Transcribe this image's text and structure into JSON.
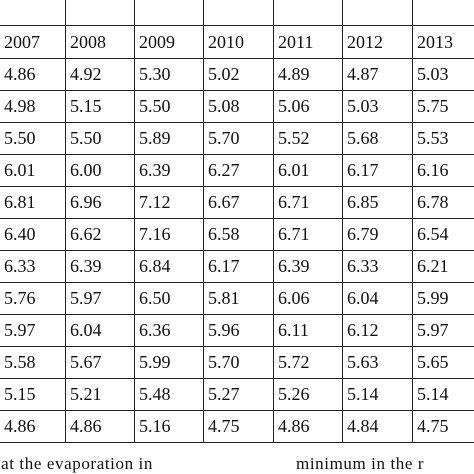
{
  "table": {
    "headers": [
      "2007",
      "2008",
      "2009",
      "2010",
      "2011",
      "2012",
      "2013"
    ],
    "rows": [
      [
        "4.86",
        "4.92",
        "5.30",
        "5.02",
        "4.89",
        "4.87",
        "5.03"
      ],
      [
        "4.98",
        "5.15",
        "5.50",
        "5.08",
        "5.06",
        "5.03",
        "5.75"
      ],
      [
        "5.50",
        "5.50",
        "5.89",
        "5.70",
        "5.52",
        "5.68",
        "5.53"
      ],
      [
        "6.01",
        "6.00",
        "6.39",
        "6.27",
        "6.01",
        "6.17",
        "6.16"
      ],
      [
        "6.81",
        "6.96",
        "7.12",
        "6.67",
        "6.71",
        "6.85",
        "6.78"
      ],
      [
        "6.40",
        "6.62",
        "7.16",
        "6.58",
        "6.71",
        "6.79",
        "6.54"
      ],
      [
        "6.33",
        "6.39",
        "6.84",
        "6.17",
        "6.39",
        "6.33",
        "6.21"
      ],
      [
        "5.76",
        "5.97",
        "6.50",
        "5.81",
        "6.06",
        "6.04",
        "5.99"
      ],
      [
        "5.97",
        "6.04",
        "6.36",
        "5.96",
        "6.11",
        "6.12",
        "5.97"
      ],
      [
        "5.58",
        "5.67",
        "5.99",
        "5.70",
        "5.72",
        "5.63",
        "5.65"
      ],
      [
        "5.15",
        "5.21",
        "5.48",
        "5.27",
        "5.26",
        "5.14",
        "5.14"
      ],
      [
        "4.86",
        "4.86",
        "5.16",
        "4.75",
        "4.86",
        "4.84",
        "4.75"
      ]
    ]
  },
  "caption": {
    "left_fragment": "hat the evaporation in",
    "right_fragment": "minimum in the r"
  }
}
